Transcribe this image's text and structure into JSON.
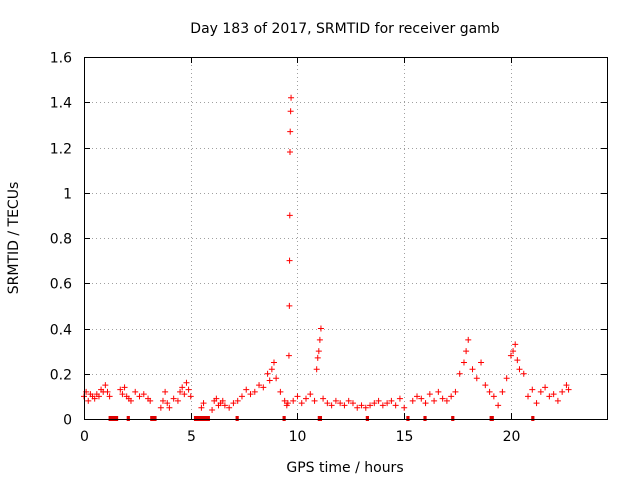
{
  "chart_data": {
    "type": "scatter",
    "title": "Day 183 of 2017, SRMTID for receiver gamb",
    "xlabel": "GPS time / hours",
    "ylabel": "SRMTID / TECUs",
    "xlim": [
      0,
      24.5
    ],
    "ylim": [
      0,
      1.6
    ],
    "xticks": [
      0,
      5,
      10,
      15,
      20
    ],
    "yticks": [
      0,
      0.2,
      0.4,
      0.6,
      0.8,
      1,
      1.2,
      1.4,
      1.6
    ],
    "xtick_labels": [
      "0",
      "5",
      "10",
      "15",
      "20"
    ],
    "ytick_labels": [
      "0",
      "0.2",
      "0.4",
      "0.6",
      "0.8",
      "1",
      "1.2",
      "1.4",
      "1.6"
    ],
    "grid": true,
    "marker": "+",
    "color": "#ff0000",
    "gap_color": "#dd0000",
    "series": [
      {
        "name": "SRMTID",
        "x": [
          0.0,
          0.1,
          0.2,
          0.3,
          0.4,
          0.5,
          0.6,
          0.7,
          0.8,
          0.9,
          1.0,
          1.1,
          1.2,
          1.7,
          1.8,
          1.9,
          2.0,
          2.1,
          2.2,
          2.4,
          2.6,
          2.8,
          3.0,
          3.1,
          3.6,
          3.7,
          3.8,
          3.9,
          4.0,
          4.2,
          4.4,
          4.5,
          4.6,
          4.7,
          4.8,
          4.9,
          5.0,
          5.5,
          5.6,
          6.0,
          6.1,
          6.2,
          6.3,
          6.4,
          6.5,
          6.6,
          6.8,
          7.0,
          7.2,
          7.4,
          7.6,
          7.8,
          8.0,
          8.2,
          8.4,
          8.6,
          8.7,
          8.8,
          8.9,
          9.0,
          9.2,
          9.4,
          9.5,
          9.55,
          9.6,
          9.62,
          9.63,
          9.64,
          9.65,
          9.66,
          9.68,
          9.7,
          9.8,
          10.0,
          10.2,
          10.4,
          10.6,
          10.8,
          10.9,
          10.95,
          11.0,
          11.05,
          11.1,
          11.2,
          11.4,
          11.6,
          11.8,
          12.0,
          12.2,
          12.4,
          12.6,
          12.8,
          13.0,
          13.2,
          13.4,
          13.6,
          13.8,
          14.0,
          14.2,
          14.4,
          14.6,
          14.8,
          15.0,
          15.4,
          15.6,
          15.8,
          16.0,
          16.2,
          16.4,
          16.6,
          16.8,
          17.0,
          17.2,
          17.4,
          17.6,
          17.8,
          17.9,
          18.0,
          18.2,
          18.4,
          18.6,
          18.8,
          19.0,
          19.2,
          19.4,
          19.6,
          19.8,
          20.0,
          20.1,
          20.2,
          20.3,
          20.4,
          20.6,
          20.8,
          21.0,
          21.2,
          21.4,
          21.6,
          21.8,
          22.0,
          22.2,
          22.4,
          22.6,
          22.7
        ],
        "y": [
          0.1,
          0.12,
          0.08,
          0.11,
          0.1,
          0.09,
          0.11,
          0.1,
          0.13,
          0.12,
          0.15,
          0.12,
          0.1,
          0.13,
          0.11,
          0.14,
          0.1,
          0.09,
          0.08,
          0.12,
          0.1,
          0.11,
          0.09,
          0.08,
          0.05,
          0.08,
          0.12,
          0.07,
          0.05,
          0.09,
          0.08,
          0.12,
          0.14,
          0.11,
          0.16,
          0.13,
          0.1,
          0.05,
          0.07,
          0.04,
          0.08,
          0.09,
          0.06,
          0.07,
          0.08,
          0.06,
          0.05,
          0.07,
          0.08,
          0.1,
          0.13,
          0.11,
          0.12,
          0.15,
          0.14,
          0.2,
          0.17,
          0.22,
          0.25,
          0.18,
          0.12,
          0.08,
          0.06,
          0.07,
          0.28,
          0.5,
          0.7,
          0.9,
          1.18,
          1.27,
          1.36,
          1.42,
          0.08,
          0.1,
          0.07,
          0.09,
          0.11,
          0.08,
          0.22,
          0.27,
          0.3,
          0.35,
          0.4,
          0.09,
          0.07,
          0.06,
          0.08,
          0.07,
          0.06,
          0.08,
          0.07,
          0.05,
          0.06,
          0.05,
          0.06,
          0.07,
          0.08,
          0.06,
          0.07,
          0.08,
          0.06,
          0.09,
          0.05,
          0.08,
          0.1,
          0.09,
          0.07,
          0.11,
          0.08,
          0.12,
          0.09,
          0.08,
          0.1,
          0.12,
          0.2,
          0.25,
          0.3,
          0.35,
          0.22,
          0.18,
          0.25,
          0.15,
          0.12,
          0.1,
          0.06,
          0.12,
          0.18,
          0.28,
          0.3,
          0.33,
          0.26,
          0.22,
          0.2,
          0.1,
          0.13,
          0.07,
          0.12,
          0.14,
          0.1,
          0.11,
          0.08,
          0.12,
          0.15,
          0.13
        ]
      }
    ],
    "gaps": [
      [
        1.15,
        1.6
      ],
      [
        2.0,
        2.15
      ],
      [
        3.1,
        3.4
      ],
      [
        5.15,
        5.9
      ],
      [
        7.1,
        7.25
      ],
      [
        9.3,
        9.45
      ],
      [
        10.95,
        11.15
      ],
      [
        13.2,
        13.35
      ],
      [
        15.1,
        15.25
      ],
      [
        15.9,
        16.05
      ],
      [
        17.2,
        17.35
      ],
      [
        19.0,
        19.2
      ],
      [
        20.95,
        21.1
      ]
    ]
  }
}
